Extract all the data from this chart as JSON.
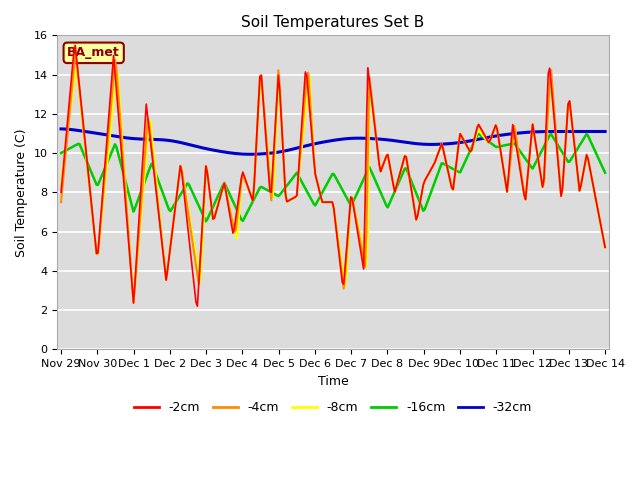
{
  "title": "Soil Temperatures Set B",
  "xlabel": "Time",
  "ylabel": "Soil Temperature (C)",
  "ylim": [
    0,
    16
  ],
  "yticks": [
    0,
    2,
    4,
    6,
    8,
    10,
    12,
    14,
    16
  ],
  "background_color": "#dcdcdc",
  "fig_color": "#ffffff",
  "annotation_text": "BA_met",
  "annotation_color": "#8B0000",
  "annotation_bg": "#ffffa0",
  "colors": {
    "-2cm": "#ff0000",
    "-4cm": "#ff8c00",
    "-8cm": "#ffff00",
    "-16cm": "#00cc00",
    "-32cm": "#0000cc"
  },
  "x_labels": [
    "Nov 29",
    "Nov 30",
    "Dec 1",
    "Dec 2",
    "Dec 3",
    "Dec 4",
    "Dec 5",
    "Dec 6",
    "Dec 7",
    "Dec 8",
    "Dec 9",
    "Dec 10",
    "Dec 11",
    "Dec 12",
    "Dec 13",
    "Dec 14"
  ],
  "lw": {
    "-2cm": 1.2,
    "-4cm": 1.5,
    "-8cm": 1.5,
    "-16cm": 1.8,
    "-32cm": 2.2
  }
}
